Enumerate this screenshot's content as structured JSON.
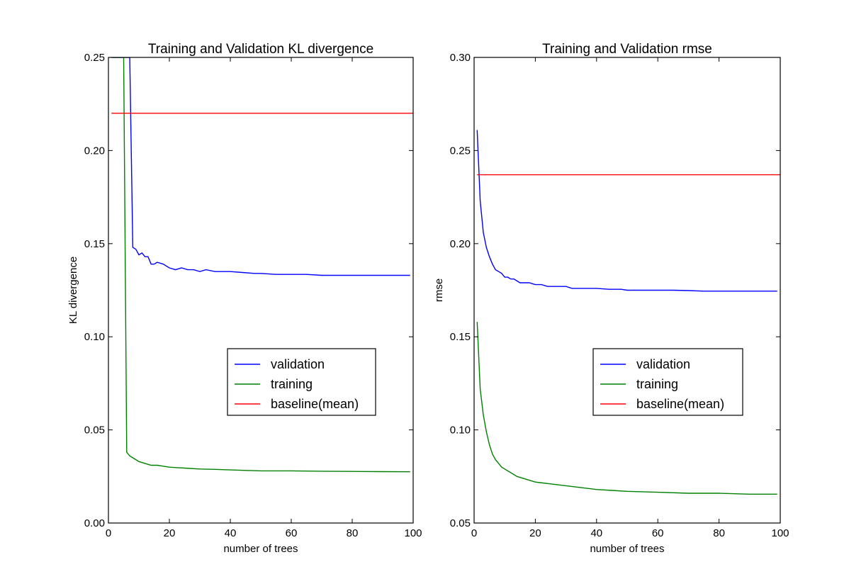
{
  "chart_data": [
    {
      "type": "line",
      "title": "Training and Validation KL divergence",
      "xlabel": "number of trees",
      "ylabel": "KL divergence",
      "xlim": [
        0,
        100
      ],
      "ylim": [
        0.0,
        0.25
      ],
      "xticks": [
        "0",
        "20",
        "40",
        "60",
        "80",
        "100"
      ],
      "yticks": [
        "0.00",
        "0.05",
        "0.10",
        "0.15",
        "0.20",
        "0.25"
      ],
      "xtick_values": [
        0,
        20,
        40,
        60,
        80,
        100
      ],
      "ytick_values": [
        0.0,
        0.05,
        0.1,
        0.15,
        0.2,
        0.25
      ],
      "grid": false,
      "legend_position": "center-right",
      "series": [
        {
          "name": "validation",
          "color": "#0000ff",
          "x": [
            1,
            2,
            3,
            4,
            5,
            6,
            7,
            8,
            9,
            10,
            11,
            12,
            13,
            14,
            15,
            16,
            18,
            20,
            22,
            24,
            26,
            28,
            30,
            32,
            35,
            38,
            40,
            44,
            48,
            50,
            55,
            60,
            65,
            70,
            75,
            80,
            85,
            90,
            95,
            99
          ],
          "y": [
            0.25,
            0.25,
            0.25,
            0.25,
            0.25,
            0.25,
            0.25,
            0.148,
            0.147,
            0.144,
            0.145,
            0.143,
            0.143,
            0.139,
            0.139,
            0.14,
            0.139,
            0.137,
            0.136,
            0.137,
            0.136,
            0.136,
            0.135,
            0.136,
            0.135,
            0.135,
            0.135,
            0.1345,
            0.134,
            0.134,
            0.1335,
            0.1335,
            0.1335,
            0.133,
            0.133,
            0.133,
            0.133,
            0.133,
            0.133,
            0.133
          ]
        },
        {
          "name": "training",
          "color": "#008000",
          "x": [
            1,
            2,
            3,
            4,
            5,
            6,
            7,
            8,
            9,
            10,
            12,
            14,
            16,
            18,
            20,
            25,
            30,
            35,
            40,
            50,
            60,
            70,
            80,
            90,
            99
          ],
          "y": [
            0.25,
            0.25,
            0.25,
            0.25,
            0.25,
            0.038,
            0.036,
            0.035,
            0.034,
            0.033,
            0.032,
            0.031,
            0.031,
            0.0305,
            0.03,
            0.0295,
            0.029,
            0.0288,
            0.0285,
            0.028,
            0.028,
            0.0278,
            0.0277,
            0.0276,
            0.0275
          ]
        },
        {
          "name": "baseline(mean)",
          "color": "#ff0000",
          "x": [
            1,
            100
          ],
          "y": [
            0.22,
            0.22
          ]
        }
      ]
    },
    {
      "type": "line",
      "title": "Training and Validation rmse",
      "xlabel": "number of trees",
      "ylabel": "rmse",
      "xlim": [
        0,
        100
      ],
      "ylim": [
        0.05,
        0.3
      ],
      "xticks": [
        "0",
        "20",
        "40",
        "60",
        "80",
        "100"
      ],
      "yticks": [
        "0.05",
        "0.10",
        "0.15",
        "0.20",
        "0.25",
        "0.30"
      ],
      "xtick_values": [
        0,
        20,
        40,
        60,
        80,
        100
      ],
      "ytick_values": [
        0.05,
        0.1,
        0.15,
        0.2,
        0.25,
        0.3
      ],
      "grid": false,
      "legend_position": "center-right",
      "series": [
        {
          "name": "validation",
          "color": "#0000ff",
          "x": [
            1,
            2,
            3,
            4,
            5,
            6,
            7,
            8,
            9,
            10,
            11,
            12,
            13,
            14,
            15,
            16,
            18,
            20,
            22,
            24,
            26,
            28,
            30,
            32,
            35,
            38,
            40,
            44,
            48,
            50,
            55,
            60,
            65,
            70,
            75,
            80,
            85,
            90,
            95,
            99
          ],
          "y": [
            0.261,
            0.223,
            0.206,
            0.198,
            0.193,
            0.189,
            0.186,
            0.185,
            0.184,
            0.182,
            0.182,
            0.181,
            0.181,
            0.18,
            0.179,
            0.179,
            0.179,
            0.178,
            0.178,
            0.177,
            0.177,
            0.177,
            0.177,
            0.176,
            0.176,
            0.176,
            0.176,
            0.1755,
            0.1755,
            0.175,
            0.175,
            0.175,
            0.175,
            0.1748,
            0.1745,
            0.1745,
            0.1745,
            0.1745,
            0.1745,
            0.1745
          ]
        },
        {
          "name": "training",
          "color": "#008000",
          "x": [
            1,
            2,
            3,
            4,
            5,
            6,
            7,
            8,
            9,
            10,
            12,
            14,
            16,
            18,
            20,
            25,
            30,
            35,
            40,
            45,
            50,
            60,
            70,
            80,
            90,
            99
          ],
          "y": [
            0.158,
            0.122,
            0.108,
            0.099,
            0.092,
            0.087,
            0.084,
            0.082,
            0.08,
            0.079,
            0.077,
            0.075,
            0.074,
            0.073,
            0.072,
            0.071,
            0.07,
            0.069,
            0.068,
            0.0675,
            0.067,
            0.0665,
            0.066,
            0.066,
            0.0655,
            0.0655
          ]
        },
        {
          "name": "baseline(mean)",
          "color": "#ff0000",
          "x": [
            1,
            100
          ],
          "y": [
            0.237,
            0.237
          ]
        }
      ]
    }
  ]
}
